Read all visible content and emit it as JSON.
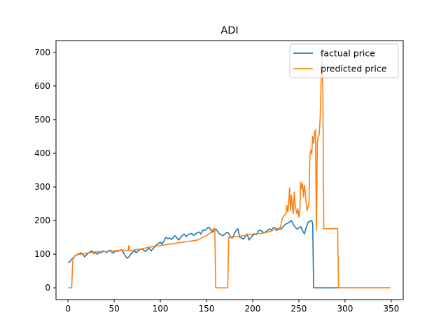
{
  "chart_data": {
    "type": "line",
    "title": "ADI",
    "xlabel": "",
    "ylabel": "",
    "xlim": [
      -13,
      363
    ],
    "ylim": [
      -35,
      735
    ],
    "x_ticks": [
      0,
      50,
      100,
      150,
      200,
      250,
      300,
      350
    ],
    "y_ticks": [
      0,
      100,
      200,
      300,
      400,
      500,
      600,
      700
    ],
    "grid": false,
    "legend_position": "top-right",
    "series": [
      {
        "name": "factual price",
        "color": "#1f77b4",
        "x": [
          0,
          2,
          4,
          6,
          8,
          10,
          12,
          14,
          16,
          18,
          20,
          22,
          24,
          26,
          28,
          30,
          32,
          34,
          36,
          38,
          40,
          42,
          44,
          46,
          48,
          50,
          52,
          54,
          56,
          58,
          60,
          62,
          64,
          66,
          68,
          70,
          72,
          74,
          76,
          78,
          80,
          82,
          84,
          86,
          88,
          90,
          92,
          94,
          96,
          98,
          100,
          102,
          104,
          106,
          108,
          110,
          112,
          114,
          116,
          118,
          120,
          122,
          124,
          126,
          128,
          130,
          132,
          134,
          136,
          138,
          140,
          142,
          144,
          146,
          148,
          150,
          152,
          154,
          156,
          158,
          160,
          162,
          164,
          166,
          168,
          170,
          172,
          174,
          176,
          178,
          180,
          182,
          184,
          186,
          188,
          190,
          192,
          194,
          196,
          198,
          200,
          202,
          204,
          206,
          208,
          210,
          212,
          214,
          216,
          218,
          220,
          222,
          224,
          226,
          228,
          230,
          232,
          234,
          236,
          238,
          240,
          242,
          244,
          246,
          248,
          250,
          252,
          254,
          256,
          258,
          260,
          262,
          264,
          265,
          266,
          300,
          349
        ],
        "y": [
          74,
          78,
          85,
          90,
          96,
          99,
          101,
          104,
          100,
          92,
          98,
          103,
          108,
          110,
          102,
          104,
          100,
          107,
          104,
          110,
          108,
          105,
          110,
          112,
          104,
          106,
          110,
          108,
          112,
          113,
          105,
          95,
          88,
          92,
          100,
          106,
          110,
          104,
          110,
          114,
          116,
          112,
          108,
          114,
          118,
          110,
          116,
          122,
          128,
          132,
          136,
          130,
          140,
          150,
          146,
          148,
          144,
          150,
          155,
          148,
          142,
          150,
          156,
          160,
          152,
          158,
          160,
          162,
          156,
          160,
          164,
          166,
          160,
          172,
          170,
          175,
          180,
          176,
          165,
          170,
          175,
          168,
          160,
          158,
          155,
          160,
          165,
          162,
          150,
          148,
          160,
          170,
          176,
          150,
          148,
          145,
          152,
          160,
          142,
          150,
          155,
          160,
          158,
          168,
          172,
          168,
          164,
          166,
          170,
          175,
          172,
          178,
          180,
          170,
          176,
          174,
          178,
          185,
          190,
          192,
          196,
          200,
          188,
          180,
          175,
          178,
          182,
          170,
          160,
          180,
          195,
          198,
          200,
          190,
          0,
          0,
          0
        ]
      },
      {
        "name": "predicted price",
        "color": "#ff7f0e",
        "x": [
          0,
          4,
          5,
          6,
          8,
          10,
          20,
          30,
          40,
          50,
          60,
          65,
          66,
          67,
          70,
          80,
          90,
          100,
          110,
          120,
          130,
          140,
          150,
          155,
          158,
          159,
          160,
          170,
          173,
          174,
          180,
          190,
          200,
          210,
          220,
          225,
          228,
          230,
          232,
          234,
          236,
          237,
          238,
          239,
          240,
          241,
          242,
          243,
          244,
          245,
          246,
          247,
          248,
          249,
          250,
          251,
          252,
          253,
          254,
          255,
          256,
          257,
          258,
          259,
          260,
          261,
          262,
          263,
          264,
          265,
          266,
          267,
          268,
          269,
          270,
          271,
          272,
          273,
          274,
          275,
          276,
          277,
          278,
          279,
          280,
          290,
          292,
          293,
          300,
          349
        ],
        "y": [
          0,
          0,
          75,
          90,
          95,
          98,
          103,
          107,
          108,
          110,
          112,
          110,
          126,
          110,
          112,
          116,
          122,
          126,
          130,
          134,
          138,
          142,
          155,
          165,
          178,
          170,
          0,
          0,
          0,
          150,
          152,
          155,
          160,
          162,
          168,
          175,
          176,
          180,
          205,
          215,
          220,
          245,
          225,
          250,
          298,
          230,
          275,
          240,
          220,
          285,
          245,
          230,
          220,
          235,
          210,
          225,
          315,
          295,
          310,
          270,
          305,
          285,
          250,
          230,
          240,
          255,
          395,
          410,
          398,
          450,
          430,
          462,
          470,
          172,
          430,
          450,
          455,
          500,
          600,
          700,
          590,
          176,
          176,
          176,
          176,
          176,
          176,
          0,
          0,
          0
        ]
      }
    ]
  }
}
